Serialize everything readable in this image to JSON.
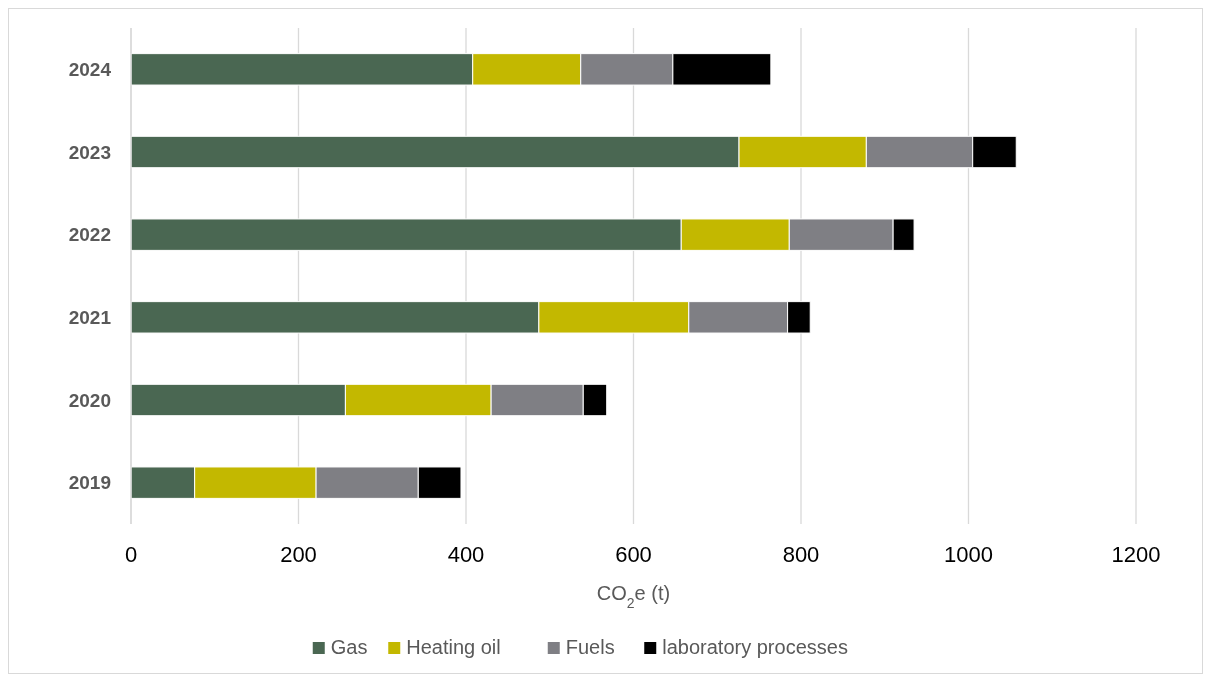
{
  "chart_data": {
    "type": "bar",
    "orientation": "horizontal",
    "stacked": true,
    "categories": [
      "2024",
      "2023",
      "2022",
      "2021",
      "2020",
      "2019"
    ],
    "series": [
      {
        "name": "Gas",
        "color": "#4a6752",
        "values": [
          408,
          726,
          657,
          487,
          256,
          76
        ]
      },
      {
        "name": "Heating oil",
        "color": "#c3b800",
        "values": [
          129,
          152,
          129,
          179,
          174,
          145
        ]
      },
      {
        "name": "Fuels",
        "color": "#7f7f84",
        "values": [
          110,
          127,
          124,
          118,
          110,
          122
        ]
      },
      {
        "name": "laboratory processes",
        "color": "#000000",
        "values": [
          117,
          52,
          25,
          27,
          28,
          51
        ]
      }
    ],
    "xlabel": "CO$_{2}$e (t)",
    "xlim": [
      0,
      1200
    ],
    "xticks": [
      0,
      200,
      400,
      600,
      800,
      1000,
      1200
    ],
    "grid": "x",
    "legend": "bottom"
  }
}
